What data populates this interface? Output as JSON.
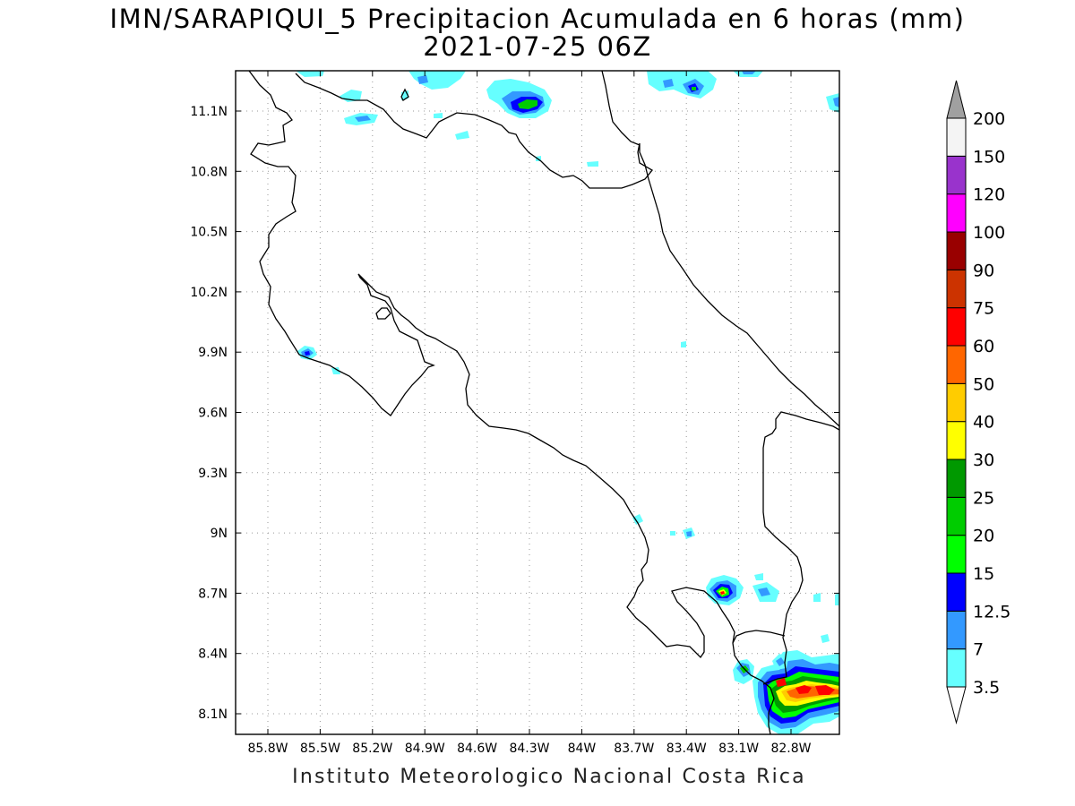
{
  "header": {
    "title": "IMN/SARAPIQUI_5 Precipitacion Acumulada en 6 horas (mm)",
    "subtitle": "2021-07-25 06Z"
  },
  "footer": {
    "credit": "Instituto Meteorologico Nacional Costa Rica"
  },
  "map": {
    "lon_range": [
      -86.12,
      -82.4
    ],
    "lat_range": [
      8.0,
      11.3
    ],
    "lon_ticks": [
      {
        "label": "85.8W"
      },
      {
        "label": "85.5W"
      },
      {
        "label": "85.2W"
      },
      {
        "label": "84.9W"
      },
      {
        "label": "84.6W"
      },
      {
        "label": "84.3W"
      },
      {
        "label": "84W"
      },
      {
        "label": "83.7W"
      },
      {
        "label": "83.4W"
      },
      {
        "label": "83.1W"
      },
      {
        "label": "82.8W"
      }
    ],
    "lat_ticks": [
      {
        "label": "11.1N"
      },
      {
        "label": "10.8N"
      },
      {
        "label": "10.5N"
      },
      {
        "label": "10.2N"
      },
      {
        "label": "9.9N"
      },
      {
        "label": "9.6N"
      },
      {
        "label": "9.3N"
      },
      {
        "label": "9N"
      },
      {
        "label": "8.7N"
      },
      {
        "label": "8.4N"
      },
      {
        "label": "8.1N"
      }
    ],
    "grid": "dotted"
  },
  "colorbar": {
    "levels": [
      {
        "label": "3.5",
        "color": "#66ffff"
      },
      {
        "label": "7",
        "color": "#3399ff"
      },
      {
        "label": "12.5",
        "color": "#0000ff"
      },
      {
        "label": "15",
        "color": "#00ff00"
      },
      {
        "label": "20",
        "color": "#00cc00"
      },
      {
        "label": "25",
        "color": "#009900"
      },
      {
        "label": "30",
        "color": "#ffff00"
      },
      {
        "label": "40",
        "color": "#ffcc00"
      },
      {
        "label": "50",
        "color": "#ff6600"
      },
      {
        "label": "60",
        "color": "#ff0000"
      },
      {
        "label": "75",
        "color": "#cc3300"
      },
      {
        "label": "90",
        "color": "#990000"
      },
      {
        "label": "100",
        "color": "#ff00ff"
      },
      {
        "label": "120",
        "color": "#9933cc"
      },
      {
        "label": "150",
        "color": "#f4f4f4"
      },
      {
        "label": "200",
        "color": "#a0a0a0"
      }
    ]
  }
}
